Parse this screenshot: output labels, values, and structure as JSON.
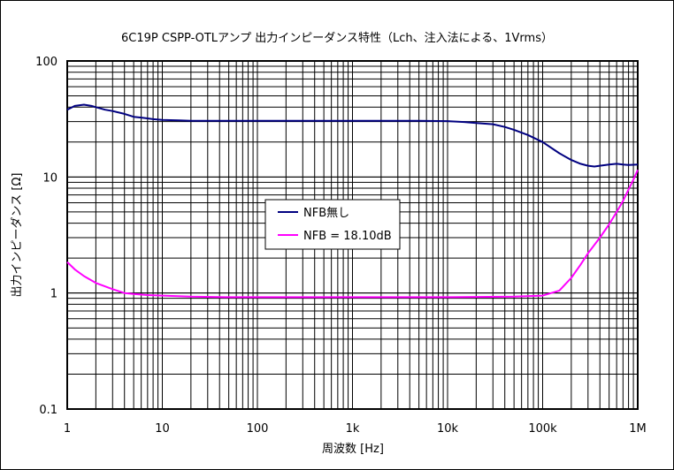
{
  "chart_data": {
    "type": "line",
    "title": "6C19P CSPP-OTLアンプ 出力インピーダンス特性（Lch、注入法による、1Vrms）",
    "xlabel": "周波数 [Hz]",
    "ylabel": "出力インピーダンス [Ω]",
    "xscale": "log",
    "yscale": "log",
    "xlim": [
      1,
      1000000
    ],
    "ylim": [
      0.1,
      100
    ],
    "grid": true,
    "legend_position": "center-left",
    "x_ticks": [
      {
        "value": 1,
        "label": "1"
      },
      {
        "value": 10,
        "label": "10"
      },
      {
        "value": 100,
        "label": "100"
      },
      {
        "value": 1000,
        "label": "1k"
      },
      {
        "value": 10000,
        "label": "10k"
      },
      {
        "value": 100000,
        "label": "100k"
      },
      {
        "value": 1000000,
        "label": "1M"
      }
    ],
    "y_ticks": [
      {
        "value": 0.1,
        "label": "0.1"
      },
      {
        "value": 1,
        "label": "1"
      },
      {
        "value": 10,
        "label": "10"
      },
      {
        "value": 100,
        "label": "100"
      }
    ],
    "series": [
      {
        "name": "NFB無し",
        "color": "#000080",
        "x": [
          1,
          1.2,
          1.5,
          1.8,
          2,
          2.5,
          3,
          4,
          5,
          6,
          7,
          8,
          10,
          15,
          20,
          30,
          50,
          100,
          200,
          500,
          1000,
          2000,
          3000,
          5000,
          10000,
          15000,
          20000,
          30000,
          40000,
          50000,
          70000,
          100000,
          150000,
          200000,
          250000,
          300000,
          350000,
          400000,
          500000,
          600000,
          700000,
          800000,
          1000000
        ],
        "values": [
          38,
          41,
          42,
          41,
          40,
          38,
          37,
          35,
          33,
          32.5,
          32,
          31.5,
          31,
          30.8,
          30.5,
          30.5,
          30.5,
          30.5,
          30.5,
          30.5,
          30.5,
          30.5,
          30.5,
          30.5,
          30.3,
          29.8,
          29.2,
          28.5,
          27,
          25.5,
          23,
          20,
          16,
          14,
          13,
          12.5,
          12.3,
          12.5,
          12.8,
          13,
          12.8,
          12.7,
          12.8
        ]
      },
      {
        "name": "NFB = 18.10dB",
        "color": "#FF00FF",
        "x": [
          1,
          1.2,
          1.5,
          2,
          3,
          4,
          5,
          7,
          10,
          20,
          50,
          100,
          1000,
          10000,
          50000,
          100000,
          150000,
          200000,
          250000,
          300000,
          400000,
          500000,
          600000,
          700000,
          800000,
          900000,
          1000000
        ],
        "values": [
          1.85,
          1.6,
          1.4,
          1.22,
          1.08,
          1.0,
          0.98,
          0.96,
          0.95,
          0.93,
          0.92,
          0.92,
          0.92,
          0.92,
          0.93,
          0.95,
          1.05,
          1.35,
          1.75,
          2.2,
          3.0,
          3.9,
          5.0,
          6.2,
          7.8,
          9.5,
          11.5
        ]
      }
    ]
  }
}
